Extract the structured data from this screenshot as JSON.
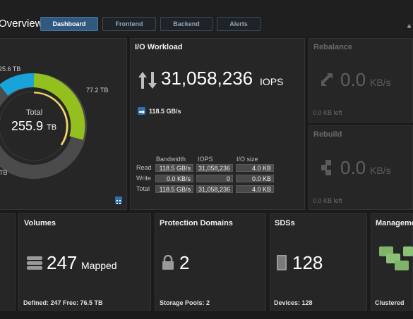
{
  "header": {
    "title": "Overview",
    "tabs": [
      "Dashboard",
      "Frontend",
      "Backend",
      "Alerts"
    ],
    "user_initial": "a"
  },
  "capacity": {
    "total_label": "Total",
    "total_value": "255.9",
    "total_unit": "TB",
    "segment_top_label": "25.6 TB",
    "segment_right_label": "77.2 TB",
    "segment_bottom_label": "TB",
    "colors": {
      "green": "#93c01f",
      "blue": "#1aa3d9",
      "gray": "#4b4b4b",
      "yellow": "#f3d86a"
    }
  },
  "io_workload": {
    "title": "I/O Workload",
    "iops_value": "31,058,236",
    "iops_unit": "IOPS",
    "bandwidth": "118.5 GB/s",
    "columns": [
      "Bandwidth",
      "IOPS",
      "I/O size"
    ],
    "rows": [
      {
        "label": "Read",
        "bandwidth": "118.5 GB/s",
        "iops": "31,058,236",
        "size": "4.0 KB"
      },
      {
        "label": "Write",
        "bandwidth": "0.0 KB/s",
        "iops": "0",
        "size": "0.0 KB"
      },
      {
        "label": "Total",
        "bandwidth": "118.5 GB/s",
        "iops": "31,058,236",
        "size": "4.0 KB"
      }
    ]
  },
  "rebalance": {
    "title": "Rebalance",
    "value": "0.0",
    "unit": "KB/s",
    "left": "0.0 KB left"
  },
  "rebuild": {
    "title": "Rebuild",
    "value": "0.0",
    "unit": "KB/s",
    "left": "0.0 KB left"
  },
  "volumes": {
    "title": "Volumes",
    "value": "247",
    "unit": "Mapped",
    "footer": "Defined: 247  Free: 76.5 TB"
  },
  "protection_domains": {
    "title": "Protection Domains",
    "value": "2",
    "footer": "Storage Pools: 2"
  },
  "sdss": {
    "title": "SDSs",
    "value": "128",
    "footer": "Devices: 128"
  },
  "management": {
    "title": "Managemen",
    "footer": "Clustered"
  }
}
